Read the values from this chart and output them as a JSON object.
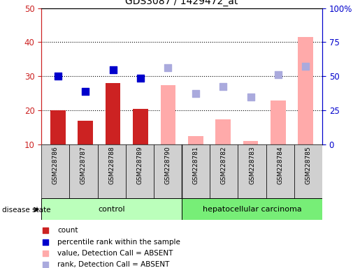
{
  "title": "GDS3087 / 1429472_at",
  "samples": [
    "GSM228786",
    "GSM228787",
    "GSM228788",
    "GSM228789",
    "GSM228790",
    "GSM228781",
    "GSM228782",
    "GSM228783",
    "GSM228784",
    "GSM228785"
  ],
  "count_bars": [
    20,
    17,
    28,
    20.5,
    null,
    null,
    null,
    null,
    null,
    null
  ],
  "count_color": "#cc2222",
  "absent_value_bars": [
    null,
    null,
    null,
    null,
    27.5,
    12.5,
    17.5,
    11,
    23,
    41.5
  ],
  "absent_value_color": "#ffaaaa",
  "percentile_rank_dots": [
    30,
    25.5,
    32,
    29.5,
    null,
    null,
    null,
    null,
    null,
    null
  ],
  "percentile_rank_color": "#0000cc",
  "absent_rank_dots": [
    null,
    null,
    null,
    null,
    32.5,
    25,
    27,
    24,
    30.5,
    33
  ],
  "absent_rank_color": "#aaaadd",
  "ylim_left": [
    10,
    50
  ],
  "ylim_right": [
    0,
    100
  ],
  "yticks_left": [
    10,
    20,
    30,
    40,
    50
  ],
  "yticks_right": [
    0,
    25,
    50,
    75,
    100
  ],
  "yticklabels_right": [
    "0",
    "25",
    "50",
    "75",
    "100%"
  ],
  "ylabel_left_color": "#cc2222",
  "ylabel_right_color": "#0000cc",
  "control_color": "#bbffbb",
  "carcinoma_color": "#77ee77",
  "disease_state_label": "disease state",
  "control_label": "control",
  "carcinoma_label": "hepatocellular carcinoma",
  "legend_items": [
    {
      "label": "count",
      "color": "#cc2222"
    },
    {
      "label": "percentile rank within the sample",
      "color": "#0000cc"
    },
    {
      "label": "value, Detection Call = ABSENT",
      "color": "#ffaaaa"
    },
    {
      "label": "rank, Detection Call = ABSENT",
      "color": "#aaaadd"
    }
  ],
  "dot_size": 55,
  "bar_width": 0.55,
  "grid_lines": [
    20,
    30,
    40
  ]
}
